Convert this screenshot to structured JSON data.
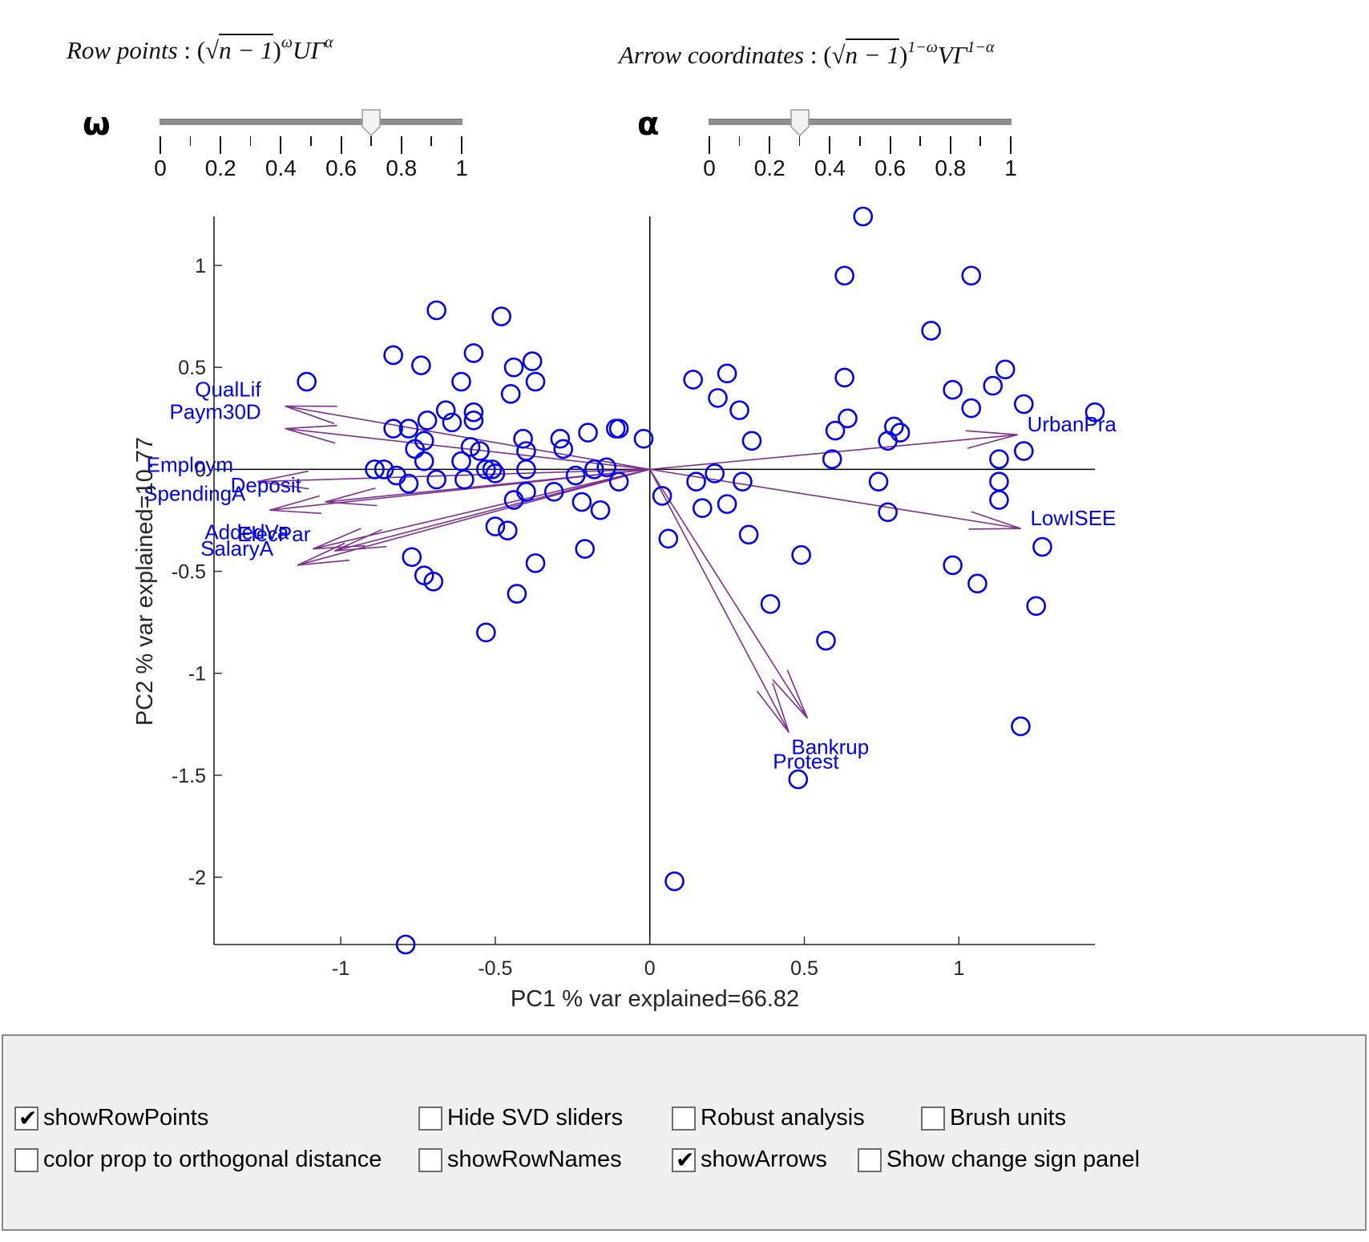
{
  "formulas": {
    "row_points": {
      "label": "Row points",
      "sep": " : ",
      "expr_parts": [
        "(",
        "√",
        "n − 1",
        ")",
        "ω",
        "UΓ",
        "α"
      ]
    },
    "arrow_coords": {
      "label": "Arrow coordinates",
      "sep": " : ",
      "expr_parts": [
        "(",
        "√",
        "n − 1",
        ")",
        "1−ω",
        "VΓ",
        "1−α"
      ]
    }
  },
  "sliders": [
    {
      "name": "omega",
      "symbol": "ω",
      "value": 0.7,
      "min": 0,
      "max": 1,
      "tick_labels": [
        "0",
        "0.2",
        "0.4",
        "0.6",
        "0.8",
        "1"
      ]
    },
    {
      "name": "alpha",
      "symbol": "α",
      "value": 0.3,
      "min": 0,
      "max": 1,
      "tick_labels": [
        "0",
        "0.2",
        "0.4",
        "0.6",
        "0.8",
        "1"
      ]
    }
  ],
  "chart_data": {
    "type": "scatter",
    "title": "",
    "xlabel": "PC1 % var explained=66.82",
    "ylabel": "PC2 % var explained=10.77",
    "xlim": [
      -1.41,
      1.44
    ],
    "ylim": [
      -2.33,
      1.24
    ],
    "xticks": [
      -1,
      -0.5,
      0,
      0.5,
      1
    ],
    "xtick_labels": [
      "-1",
      "-0.5",
      "0",
      "0.5",
      "1"
    ],
    "yticks": [
      1,
      0.5,
      0,
      -0.5,
      -1,
      -1.5,
      -2
    ],
    "ytick_labels": [
      "1",
      "0.5",
      "0",
      "-0.5",
      "-1",
      "-1.5",
      "-2"
    ],
    "grid": false,
    "reference_lines": {
      "x": 0,
      "y": 0
    },
    "colors": {
      "points": "#0000ff",
      "arrows": "#7e2f8e",
      "labels": "#0000ff",
      "axes": "#262626"
    },
    "points": [
      [
        -1.11,
        0.43
      ],
      [
        -0.69,
        0.78
      ],
      [
        -0.48,
        0.75
      ],
      [
        -0.83,
        0.56
      ],
      [
        -0.74,
        0.51
      ],
      [
        -0.57,
        0.57
      ],
      [
        -0.61,
        0.43
      ],
      [
        -0.44,
        0.5
      ],
      [
        -0.38,
        0.53
      ],
      [
        -0.37,
        0.43
      ],
      [
        -0.45,
        0.37
      ],
      [
        -0.66,
        0.29
      ],
      [
        -0.72,
        0.24
      ],
      [
        -0.64,
        0.23
      ],
      [
        -0.57,
        0.28
      ],
      [
        -0.57,
        0.24
      ],
      [
        -0.83,
        0.2
      ],
      [
        -0.78,
        0.2
      ],
      [
        -0.73,
        0.14
      ],
      [
        -0.76,
        0.1
      ],
      [
        -0.58,
        0.11
      ],
      [
        -0.55,
        0.09
      ],
      [
        -0.41,
        0.15
      ],
      [
        -0.4,
        0.09
      ],
      [
        -0.29,
        0.15
      ],
      [
        -0.28,
        0.1
      ],
      [
        -0.2,
        0.18
      ],
      [
        -0.11,
        0.2
      ],
      [
        -0.1,
        0.2
      ],
      [
        -0.02,
        0.15
      ],
      [
        -0.89,
        0.0
      ],
      [
        -0.86,
        0.0
      ],
      [
        -0.82,
        -0.03
      ],
      [
        -0.78,
        -0.07
      ],
      [
        -0.73,
        0.04
      ],
      [
        -0.69,
        -0.05
      ],
      [
        -0.61,
        0.04
      ],
      [
        -0.6,
        -0.05
      ],
      [
        -0.53,
        0.0
      ],
      [
        -0.51,
        0.0
      ],
      [
        -0.5,
        -0.02
      ],
      [
        -0.4,
        0.0
      ],
      [
        -0.24,
        -0.03
      ],
      [
        -0.18,
        0.0
      ],
      [
        -0.14,
        0.01
      ],
      [
        -0.1,
        -0.06
      ],
      [
        -0.44,
        -0.15
      ],
      [
        -0.4,
        -0.11
      ],
      [
        -0.31,
        -0.11
      ],
      [
        -0.22,
        -0.16
      ],
      [
        -0.16,
        -0.2
      ],
      [
        -0.5,
        -0.28
      ],
      [
        -0.46,
        -0.3
      ],
      [
        -0.37,
        -0.46
      ],
      [
        -0.77,
        -0.43
      ],
      [
        -0.73,
        -0.52
      ],
      [
        -0.7,
        -0.55
      ],
      [
        -0.43,
        -0.61
      ],
      [
        -0.53,
        -0.8
      ],
      [
        -0.21,
        -0.39
      ],
      [
        -0.79,
        -2.33
      ],
      [
        0.69,
        1.24
      ],
      [
        0.63,
        0.95
      ],
      [
        1.04,
        0.95
      ],
      [
        0.91,
        0.68
      ],
      [
        0.14,
        0.44
      ],
      [
        0.25,
        0.47
      ],
      [
        0.22,
        0.35
      ],
      [
        0.29,
        0.29
      ],
      [
        0.33,
        0.14
      ],
      [
        0.63,
        0.45
      ],
      [
        0.64,
        0.25
      ],
      [
        0.6,
        0.19
      ],
      [
        0.59,
        0.05
      ],
      [
        0.79,
        0.21
      ],
      [
        0.81,
        0.18
      ],
      [
        0.77,
        0.14
      ],
      [
        0.98,
        0.39
      ],
      [
        1.04,
        0.3
      ],
      [
        1.11,
        0.41
      ],
      [
        1.15,
        0.49
      ],
      [
        1.21,
        0.32
      ],
      [
        1.44,
        0.28
      ],
      [
        1.21,
        0.09
      ],
      [
        1.13,
        0.05
      ],
      [
        0.21,
        -0.02
      ],
      [
        0.15,
        -0.06
      ],
      [
        0.3,
        -0.06
      ],
      [
        0.74,
        -0.06
      ],
      [
        1.13,
        -0.06
      ],
      [
        1.13,
        -0.15
      ],
      [
        0.04,
        -0.13
      ],
      [
        0.17,
        -0.19
      ],
      [
        0.25,
        -0.17
      ],
      [
        0.77,
        -0.21
      ],
      [
        0.06,
        -0.34
      ],
      [
        0.32,
        -0.32
      ],
      [
        0.49,
        -0.42
      ],
      [
        0.39,
        -0.66
      ],
      [
        0.98,
        -0.47
      ],
      [
        1.06,
        -0.56
      ],
      [
        1.27,
        -0.38
      ],
      [
        1.25,
        -0.67
      ],
      [
        0.57,
        -0.84
      ],
      [
        1.2,
        -1.26
      ],
      [
        0.48,
        -1.52
      ],
      [
        0.08,
        -2.02
      ]
    ],
    "arrows": [
      {
        "name": "QualLif",
        "x": -1.18,
        "y": 0.31
      },
      {
        "name": "Paym30D",
        "x": -1.18,
        "y": 0.2
      },
      {
        "name": "Employm",
        "x": -1.27,
        "y": -0.06
      },
      {
        "name": "Deposit",
        "x": -1.05,
        "y": -0.16
      },
      {
        "name": "SpendingA",
        "x": -1.23,
        "y": -0.2
      },
      {
        "name": "ElecPar",
        "x": -1.02,
        "y": -0.4
      },
      {
        "name": "AddedVa",
        "x": -1.09,
        "y": -0.39
      },
      {
        "name": "SalaryA",
        "x": -1.14,
        "y": -0.47
      },
      {
        "name": "UrbanPra",
        "x": 1.19,
        "y": 0.17
      },
      {
        "name": "LowISEE",
        "x": 1.2,
        "y": -0.29
      },
      {
        "name": "Bankrup",
        "x": 0.51,
        "y": -1.22
      },
      {
        "name": "Protest",
        "x": 0.45,
        "y": -1.29
      }
    ]
  },
  "options_panel": {
    "checkboxes": [
      {
        "id": "showRowPoints",
        "label": "showRowPoints",
        "checked": true
      },
      {
        "id": "hideSvdSliders",
        "label": "Hide SVD sliders",
        "checked": false
      },
      {
        "id": "robustAnalysis",
        "label": "Robust analysis",
        "checked": false
      },
      {
        "id": "brushUnits",
        "label": "Brush units",
        "checked": false
      },
      {
        "id": "colorPropOrthDist",
        "label": "color prop to orthogonal distance",
        "checked": false
      },
      {
        "id": "showRowNames",
        "label": "showRowNames",
        "checked": false
      },
      {
        "id": "showArrows",
        "label": "showArrows",
        "checked": true
      },
      {
        "id": "showChangeSignPanel",
        "label": "Show change sign panel",
        "checked": false
      }
    ]
  }
}
